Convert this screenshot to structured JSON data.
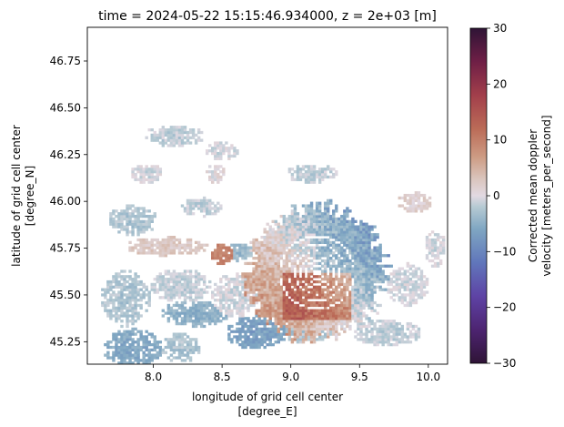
{
  "chart_data": {
    "type": "heatmap",
    "title": "time = 2024-05-22 15:15:46.934000, z = 2e+03 [m]",
    "xlabel_line1": "longitude of grid cell center",
    "xlabel_line2": "[degree_E]",
    "ylabel_line1": "latitude of grid cell center",
    "ylabel_line2": "[degree_N]",
    "xlim": [
      7.52,
      10.14
    ],
    "ylim": [
      45.13,
      46.93
    ],
    "xticks": [
      {
        "value": 8.0,
        "label": "8.0"
      },
      {
        "value": 8.5,
        "label": "8.5"
      },
      {
        "value": 9.0,
        "label": "9.0"
      },
      {
        "value": 9.5,
        "label": "9.5"
      },
      {
        "value": 10.0,
        "label": "10.0"
      }
    ],
    "yticks": [
      {
        "value": 45.25,
        "label": "45.25"
      },
      {
        "value": 45.5,
        "label": "45.50"
      },
      {
        "value": 45.75,
        "label": "45.75"
      },
      {
        "value": 46.0,
        "label": "46.00"
      },
      {
        "value": 46.25,
        "label": "46.25"
      },
      {
        "value": 46.5,
        "label": "46.50"
      },
      {
        "value": 46.75,
        "label": "46.75"
      }
    ],
    "colorbar": {
      "label_line1": "Corrected mean doppler",
      "label_line2": "velocity [meters_per_second]",
      "vmin": -30,
      "vmax": 30,
      "colormap": "twilight",
      "ticks": [
        {
          "value": 30,
          "label": "30"
        },
        {
          "value": 20,
          "label": "20"
        },
        {
          "value": 10,
          "label": "10"
        },
        {
          "value": 0,
          "label": "0"
        },
        {
          "value": -10,
          "label": "−10"
        },
        {
          "value": -20,
          "label": "−20"
        },
        {
          "value": -30,
          "label": "−30"
        }
      ],
      "stops": [
        {
          "value": -30,
          "color": "#2f1436"
        },
        {
          "value": -24,
          "color": "#4d2471"
        },
        {
          "value": -18,
          "color": "#5e43a5"
        },
        {
          "value": -12,
          "color": "#6076bb"
        },
        {
          "value": -6,
          "color": "#7fa6c2"
        },
        {
          "value": -2,
          "color": "#b6cad3"
        },
        {
          "value": 0,
          "color": "#e2d9e2"
        },
        {
          "value": 3,
          "color": "#dac5bd"
        },
        {
          "value": 7,
          "color": "#cd9b83"
        },
        {
          "value": 12,
          "color": "#bb6b57"
        },
        {
          "value": 18,
          "color": "#a23f4b"
        },
        {
          "value": 24,
          "color": "#6f1f46"
        },
        {
          "value": 30,
          "color": "#2f1436"
        }
      ]
    },
    "radar": {
      "center_lon": 9.19,
      "center_lat": 45.62,
      "ring_radii_deg": [
        0.05,
        0.085,
        0.12,
        0.16,
        0.21,
        0.27
      ],
      "echo_radius_deg": 0.5
    },
    "echo_clusters": [
      {
        "lon": 8.15,
        "lat": 46.35,
        "rx": 0.22,
        "ry": 0.06,
        "velocity": -2
      },
      {
        "lon": 8.5,
        "lat": 46.27,
        "rx": 0.12,
        "ry": 0.05,
        "velocity": -1
      },
      {
        "lon": 7.95,
        "lat": 46.15,
        "rx": 0.12,
        "ry": 0.05,
        "velocity": -1
      },
      {
        "lon": 8.45,
        "lat": 46.15,
        "rx": 0.08,
        "ry": 0.05,
        "velocity": 0
      },
      {
        "lon": 7.85,
        "lat": 45.9,
        "rx": 0.18,
        "ry": 0.08,
        "velocity": -3
      },
      {
        "lon": 8.35,
        "lat": 45.97,
        "rx": 0.15,
        "ry": 0.05,
        "velocity": -2
      },
      {
        "lon": 8.1,
        "lat": 45.76,
        "rx": 0.3,
        "ry": 0.05,
        "velocity": 2
      },
      {
        "lon": 8.5,
        "lat": 45.72,
        "rx": 0.08,
        "ry": 0.06,
        "velocity": 9
      },
      {
        "lon": 8.63,
        "lat": 45.73,
        "rx": 0.1,
        "ry": 0.05,
        "velocity": -4
      },
      {
        "lon": 7.8,
        "lat": 45.48,
        "rx": 0.18,
        "ry": 0.15,
        "velocity": -3
      },
      {
        "lon": 8.2,
        "lat": 45.55,
        "rx": 0.22,
        "ry": 0.09,
        "velocity": -2
      },
      {
        "lon": 8.6,
        "lat": 45.5,
        "rx": 0.18,
        "ry": 0.12,
        "velocity": -1
      },
      {
        "lon": 8.3,
        "lat": 45.4,
        "rx": 0.25,
        "ry": 0.07,
        "velocity": -5
      },
      {
        "lon": 7.85,
        "lat": 45.22,
        "rx": 0.22,
        "ry": 0.1,
        "velocity": -6
      },
      {
        "lon": 8.2,
        "lat": 45.22,
        "rx": 0.15,
        "ry": 0.08,
        "velocity": -3
      },
      {
        "lon": 8.75,
        "lat": 45.3,
        "rx": 0.22,
        "ry": 0.09,
        "velocity": -7
      },
      {
        "lon": 9.15,
        "lat": 46.15,
        "rx": 0.2,
        "ry": 0.05,
        "velocity": -2
      },
      {
        "lon": 9.9,
        "lat": 46.0,
        "rx": 0.12,
        "ry": 0.06,
        "velocity": 1
      },
      {
        "lon": 9.85,
        "lat": 45.55,
        "rx": 0.15,
        "ry": 0.12,
        "velocity": -1
      },
      {
        "lon": 10.05,
        "lat": 45.75,
        "rx": 0.08,
        "ry": 0.1,
        "velocity": -1
      },
      {
        "lon": 9.7,
        "lat": 45.3,
        "rx": 0.25,
        "ry": 0.07,
        "velocity": -2
      },
      {
        "lon": 9.1,
        "lat": 45.3,
        "rx": 0.2,
        "ry": 0.06,
        "velocity": -3
      }
    ]
  }
}
